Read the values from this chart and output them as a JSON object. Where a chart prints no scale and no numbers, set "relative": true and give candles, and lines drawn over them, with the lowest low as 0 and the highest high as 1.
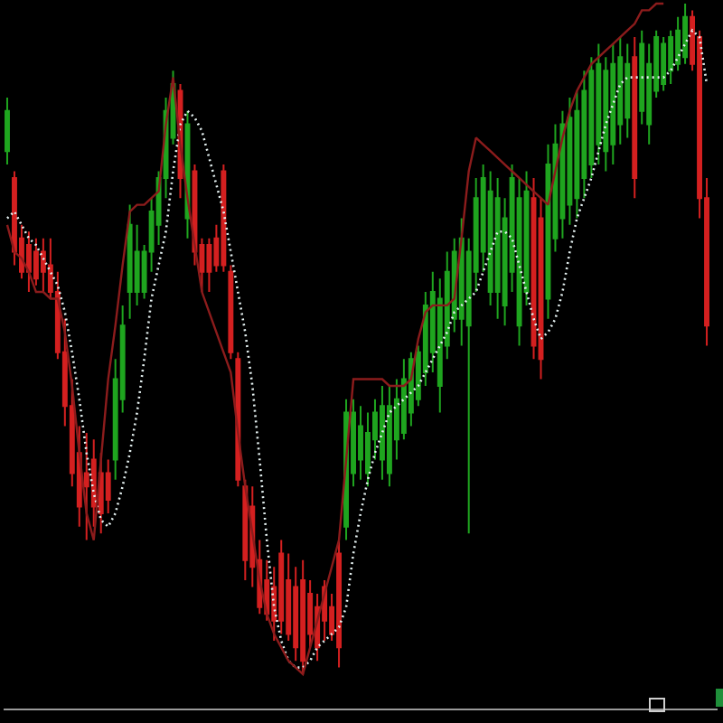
{
  "chart_data": {
    "type": "candlestick",
    "relative": true,
    "categories": [
      null,
      null,
      null,
      null,
      null,
      null,
      null,
      null,
      null,
      null,
      null,
      null,
      null,
      null,
      null,
      null,
      null,
      null,
      null,
      null,
      null,
      null,
      null,
      null,
      null,
      null,
      null,
      null,
      null,
      null,
      null,
      null,
      null,
      null,
      null,
      null,
      null,
      null,
      null,
      null,
      null,
      null,
      null,
      null,
      null,
      null,
      null,
      null,
      null,
      null,
      null,
      null,
      null,
      null,
      null,
      null,
      null,
      null,
      null,
      null,
      null,
      null,
      null,
      null,
      null,
      null,
      null,
      null,
      null,
      null,
      null,
      null,
      null,
      null,
      null,
      null,
      null,
      null,
      null,
      null,
      null,
      null,
      null,
      null,
      null,
      null,
      null,
      null,
      null,
      null,
      null,
      null,
      null,
      null,
      null,
      null,
      null,
      null
    ],
    "ohlc": [
      [
        0.78,
        0.86,
        0.76,
        0.84
      ],
      [
        0.74,
        0.75,
        0.61,
        0.63
      ],
      [
        0.65,
        0.67,
        0.59,
        0.6
      ],
      [
        0.64,
        0.66,
        0.57,
        0.6
      ],
      [
        0.63,
        0.65,
        0.58,
        0.59
      ],
      [
        0.63,
        0.65,
        0.57,
        0.6
      ],
      [
        0.61,
        0.65,
        0.56,
        0.57
      ],
      [
        0.57,
        0.6,
        0.47,
        0.48
      ],
      [
        0.48,
        0.53,
        0.37,
        0.4
      ],
      [
        0.4,
        0.44,
        0.28,
        0.3
      ],
      [
        0.33,
        0.37,
        0.22,
        0.25
      ],
      [
        0.3,
        0.36,
        0.2,
        0.28
      ],
      [
        0.32,
        0.35,
        0.22,
        0.25
      ],
      [
        0.3,
        0.33,
        0.21,
        0.24
      ],
      [
        0.3,
        0.32,
        0.24,
        0.26
      ],
      [
        0.32,
        0.47,
        0.29,
        0.44
      ],
      [
        0.41,
        0.55,
        0.39,
        0.52
      ],
      [
        0.57,
        0.7,
        0.53,
        0.67
      ],
      [
        0.57,
        0.67,
        0.55,
        0.63
      ],
      [
        0.57,
        0.64,
        0.56,
        0.63
      ],
      [
        0.63,
        0.71,
        0.6,
        0.69
      ],
      [
        0.67,
        0.75,
        0.64,
        0.74
      ],
      [
        0.74,
        0.86,
        0.71,
        0.84
      ],
      [
        0.8,
        0.9,
        0.79,
        0.88
      ],
      [
        0.87,
        0.88,
        0.71,
        0.74
      ],
      [
        0.68,
        0.84,
        0.65,
        0.82
      ],
      [
        0.75,
        0.76,
        0.61,
        0.63
      ],
      [
        0.64,
        0.65,
        0.57,
        0.6
      ],
      [
        0.64,
        0.65,
        0.57,
        0.6
      ],
      [
        0.65,
        0.67,
        0.6,
        0.61
      ],
      [
        0.75,
        0.76,
        0.6,
        0.61
      ],
      [
        0.6,
        0.61,
        0.47,
        0.48
      ],
      [
        0.47,
        0.48,
        0.28,
        0.29
      ],
      [
        0.28,
        0.29,
        0.14,
        0.17
      ],
      [
        0.25,
        0.28,
        0.13,
        0.16
      ],
      [
        0.17,
        0.2,
        0.09,
        0.1
      ],
      [
        0.14,
        0.17,
        0.08,
        0.09
      ],
      [
        0.13,
        0.16,
        0.05,
        0.08
      ],
      [
        0.18,
        0.2,
        0.06,
        0.08
      ],
      [
        0.14,
        0.18,
        0.05,
        0.06
      ],
      [
        0.13,
        0.16,
        0.02,
        0.04
      ],
      [
        0.14,
        0.17,
        0,
        0.02
      ],
      [
        0.12,
        0.14,
        0.04,
        0.06
      ],
      [
        0.1,
        0.12,
        0.02,
        0.04
      ],
      [
        0.13,
        0.14,
        0.05,
        0.08
      ],
      [
        0.1,
        0.12,
        0.05,
        0.06
      ],
      [
        0.18,
        0.2,
        0.01,
        0.04
      ],
      [
        0.22,
        0.41,
        0.2,
        0.39
      ],
      [
        0.3,
        0.41,
        0.28,
        0.39
      ],
      [
        0.32,
        0.4,
        0.29,
        0.37
      ],
      [
        0.3,
        0.39,
        0.28,
        0.36
      ],
      [
        0.35,
        0.41,
        0.32,
        0.39
      ],
      [
        0.32,
        0.43,
        0.29,
        0.4
      ],
      [
        0.3,
        0.43,
        0.28,
        0.4
      ],
      [
        0.35,
        0.44,
        0.32,
        0.41
      ],
      [
        0.36,
        0.47,
        0.35,
        0.44
      ],
      [
        0.39,
        0.48,
        0.37,
        0.47
      ],
      [
        0.41,
        0.49,
        0.4,
        0.48
      ],
      [
        0.45,
        0.57,
        0.43,
        0.55
      ],
      [
        0.48,
        0.6,
        0.45,
        0.57
      ],
      [
        0.43,
        0.59,
        0.39,
        0.56
      ],
      [
        0.49,
        0.63,
        0.47,
        0.6
      ],
      [
        0.53,
        0.65,
        0.51,
        0.63
      ],
      [
        0.53,
        0.68,
        0.49,
        0.65
      ],
      [
        0.52,
        0.65,
        0.21,
        0.63
      ],
      [
        0.6,
        0.74,
        0.57,
        0.71
      ],
      [
        0.63,
        0.76,
        0.6,
        0.74
      ],
      [
        0.57,
        0.75,
        0.55,
        0.72
      ],
      [
        0.57,
        0.74,
        0.53,
        0.71
      ],
      [
        0.55,
        0.71,
        0.52,
        0.68
      ],
      [
        0.6,
        0.76,
        0.57,
        0.74
      ],
      [
        0.52,
        0.74,
        0.49,
        0.71
      ],
      [
        0.57,
        0.75,
        0.55,
        0.72
      ],
      [
        0.71,
        0.74,
        0.47,
        0.49
      ],
      [
        0.68,
        0.71,
        0.44,
        0.47
      ],
      [
        0.56,
        0.79,
        0.53,
        0.76
      ],
      [
        0.65,
        0.82,
        0.63,
        0.79
      ],
      [
        0.68,
        0.84,
        0.65,
        0.82
      ],
      [
        0.7,
        0.86,
        0.67,
        0.83
      ],
      [
        0.71,
        0.87,
        0.68,
        0.84
      ],
      [
        0.74,
        0.9,
        0.71,
        0.87
      ],
      [
        0.76,
        0.92,
        0.74,
        0.9
      ],
      [
        0.79,
        0.94,
        0.76,
        0.91
      ],
      [
        0.78,
        0.92,
        0.75,
        0.9
      ],
      [
        0.79,
        0.94,
        0.76,
        0.91
      ],
      [
        0.82,
        0.95,
        0.79,
        0.92
      ],
      [
        0.83,
        0.94,
        0.8,
        0.91
      ],
      [
        0.92,
        0.95,
        0.71,
        0.74
      ],
      [
        0.84,
        0.96,
        0.82,
        0.94
      ],
      [
        0.82,
        0.94,
        0.79,
        0.91
      ],
      [
        0.87,
        0.96,
        0.86,
        0.95
      ],
      [
        0.88,
        0.95,
        0.87,
        0.94
      ],
      [
        0.9,
        0.96,
        0.88,
        0.95
      ],
      [
        0.91,
        0.98,
        0.9,
        0.96
      ],
      [
        0.92,
        1.0,
        0.91,
        0.98
      ],
      [
        0.98,
        0.99,
        0.9,
        0.91
      ],
      [
        0.95,
        0.96,
        0.68,
        0.71
      ],
      [
        0.71,
        0.74,
        0.49,
        0.52
      ]
    ],
    "colors": [
      "#1fa51f",
      "#d42020",
      "#d42020",
      "#d42020",
      "#d42020",
      "#d42020",
      "#d42020",
      "#d42020",
      "#d42020",
      "#d42020",
      "#d42020",
      "#d42020",
      "#d42020",
      "#d42020",
      "#d42020",
      "#1fa51f",
      "#1fa51f",
      "#1fa51f",
      "#1fa51f",
      "#1fa51f",
      "#1fa51f",
      "#1fa51f",
      "#1fa51f",
      "#1fa51f",
      "#d42020",
      "#1fa51f",
      "#d42020",
      "#d42020",
      "#d42020",
      "#d42020",
      "#d42020",
      "#d42020",
      "#d42020",
      "#d42020",
      "#d42020",
      "#d42020",
      "#d42020",
      "#d42020",
      "#d42020",
      "#d42020",
      "#d42020",
      "#d42020",
      "#d42020",
      "#d42020",
      "#d42020",
      "#d42020",
      "#d42020",
      "#1fa51f",
      "#1fa51f",
      "#1fa51f",
      "#1fa51f",
      "#1fa51f",
      "#1fa51f",
      "#1fa51f",
      "#1fa51f",
      "#1fa51f",
      "#1fa51f",
      "#1fa51f",
      "#1fa51f",
      "#1fa51f",
      "#1fa51f",
      "#1fa51f",
      "#1fa51f",
      "#1fa51f",
      "#1fa51f",
      "#1fa51f",
      "#1fa51f",
      "#1fa51f",
      "#1fa51f",
      "#1fa51f",
      "#1fa51f",
      "#1fa51f",
      "#1fa51f",
      "#d42020",
      "#d42020",
      "#1fa51f",
      "#1fa51f",
      "#1fa51f",
      "#1fa51f",
      "#1fa51f",
      "#1fa51f",
      "#1fa51f",
      "#1fa51f",
      "#1fa51f",
      "#1fa51f",
      "#1fa51f",
      "#1fa51f",
      "#d42020",
      "#1fa51f",
      "#1fa51f",
      "#1fa51f",
      "#1fa51f",
      "#1fa51f",
      "#1fa51f",
      "#1fa51f",
      "#d42020",
      "#d42020",
      "#d42020"
    ],
    "series": [
      {
        "type": "line",
        "color": "#e6f2f2",
        "line_style": "dotted",
        "values": [
          0.68,
          0.69,
          0.67,
          0.65,
          0.64,
          0.62,
          0.6,
          0.58,
          0.54,
          0.48,
          0.41,
          0.33,
          0.27,
          0.23,
          0.22,
          0.24,
          0.28,
          0.33,
          0.39,
          0.47,
          0.56,
          0.61,
          0.66,
          0.75,
          0.82,
          0.84,
          0.83,
          0.81,
          0.77,
          0.73,
          0.69,
          0.63,
          0.57,
          0.51,
          0.43,
          0.32,
          0.2,
          0.1,
          0.05,
          0.02,
          0.01,
          0.01,
          0.02,
          0.04,
          0.05,
          0.06,
          0.07,
          0.1,
          0.18,
          0.24,
          0.29,
          0.33,
          0.36,
          0.39,
          0.4,
          0.41,
          0.42,
          0.43,
          0.45,
          0.47,
          0.49,
          0.51,
          0.54,
          0.55,
          0.56,
          0.57,
          0.6,
          0.63,
          0.66,
          0.66,
          0.65,
          0.61,
          0.57,
          0.53,
          0.5,
          0.51,
          0.53,
          0.57,
          0.63,
          0.68,
          0.71,
          0.74,
          0.78,
          0.82,
          0.85,
          0.88,
          0.89,
          0.89,
          0.89,
          0.89,
          0.89,
          0.89,
          0.9,
          0.92,
          0.94,
          0.96,
          0.95,
          0.88
        ]
      },
      {
        "type": "line",
        "color": "#8c1c1c",
        "line_style": "solid",
        "values": [
          0.67,
          0.63,
          0.62,
          0.6,
          0.57,
          0.57,
          0.56,
          0.56,
          0.51,
          0.43,
          0.33,
          0.24,
          0.2,
          0.32,
          0.44,
          0.52,
          0.61,
          0.69,
          0.7,
          0.7,
          0.71,
          0.72,
          0.82,
          0.89,
          0.79,
          0.71,
          0.64,
          0.57,
          0.54,
          0.51,
          0.48,
          0.45,
          0.36,
          0.28,
          0.21,
          0.14,
          0.09,
          0.06,
          0.04,
          0.02,
          0.01,
          0.0,
          0.04,
          0.08,
          0.12,
          0.16,
          0.2,
          0.32,
          0.44,
          0.44,
          0.44,
          0.44,
          0.44,
          0.43,
          0.43,
          0.43,
          0.44,
          0.5,
          0.54,
          0.55,
          0.55,
          0.55,
          0.56,
          0.65,
          0.75,
          0.8,
          0.79,
          0.78,
          0.77,
          0.76,
          0.75,
          0.74,
          0.73,
          0.72,
          0.71,
          0.7,
          0.75,
          0.8,
          0.84,
          0.87,
          0.89,
          0.91,
          0.92,
          0.93,
          0.94,
          0.95,
          0.96,
          0.97,
          0.99,
          0.99,
          1.0,
          1.0,
          null,
          null,
          null,
          null,
          null,
          null
        ]
      }
    ]
  }
}
